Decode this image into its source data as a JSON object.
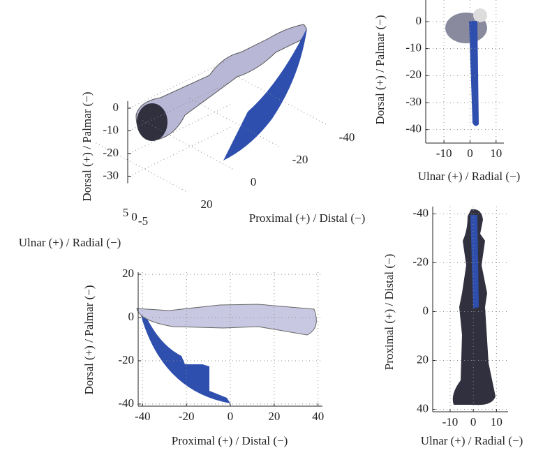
{
  "chart_data": [
    {
      "type": "scatter3d",
      "xlabel": "Proximal (+) / Distal (−)",
      "ylabel": "Ulnar (+) / Radial (−)",
      "zlabel": "Dorsal (+) / Palmar (−)",
      "xticks": [
        20,
        0,
        -20,
        -40
      ],
      "yticks": [
        5,
        0,
        -5
      ],
      "zticks": [
        0,
        -10,
        -20,
        -30
      ],
      "grid": true
    },
    {
      "type": "scatter",
      "xlabel": "Ulnar (+) / Radial (−)",
      "ylabel": "Dorsal (+) / Palmar (−)",
      "xlim": [
        -17,
        13
      ],
      "ylim": [
        -45,
        8
      ],
      "xticks": [
        -10,
        0,
        10
      ],
      "yticks": [
        0,
        -10,
        -20,
        -30,
        -40
      ],
      "grid": true
    },
    {
      "type": "scatter",
      "xlabel": "Proximal (+) / Distal (−)",
      "ylabel": "Dorsal (+) / Palmar (−)",
      "xlim": [
        -42,
        42
      ],
      "ylim": [
        -41,
        21
      ],
      "xticks": [
        -40,
        -20,
        0,
        20,
        40
      ],
      "yticks": [
        20,
        0,
        -20,
        -40
      ],
      "grid": true
    },
    {
      "type": "scatter",
      "xlabel": "Ulnar (+) / Radial (−)",
      "ylabel": "Proximal (+) / Distal (−)",
      "xlim": [
        -17.5,
        15
      ],
      "ylim": [
        41,
        -43
      ],
      "xticks": [
        -10,
        0,
        10
      ],
      "yticks": [
        -40,
        -20,
        0,
        20,
        40
      ],
      "grid": true
    }
  ]
}
